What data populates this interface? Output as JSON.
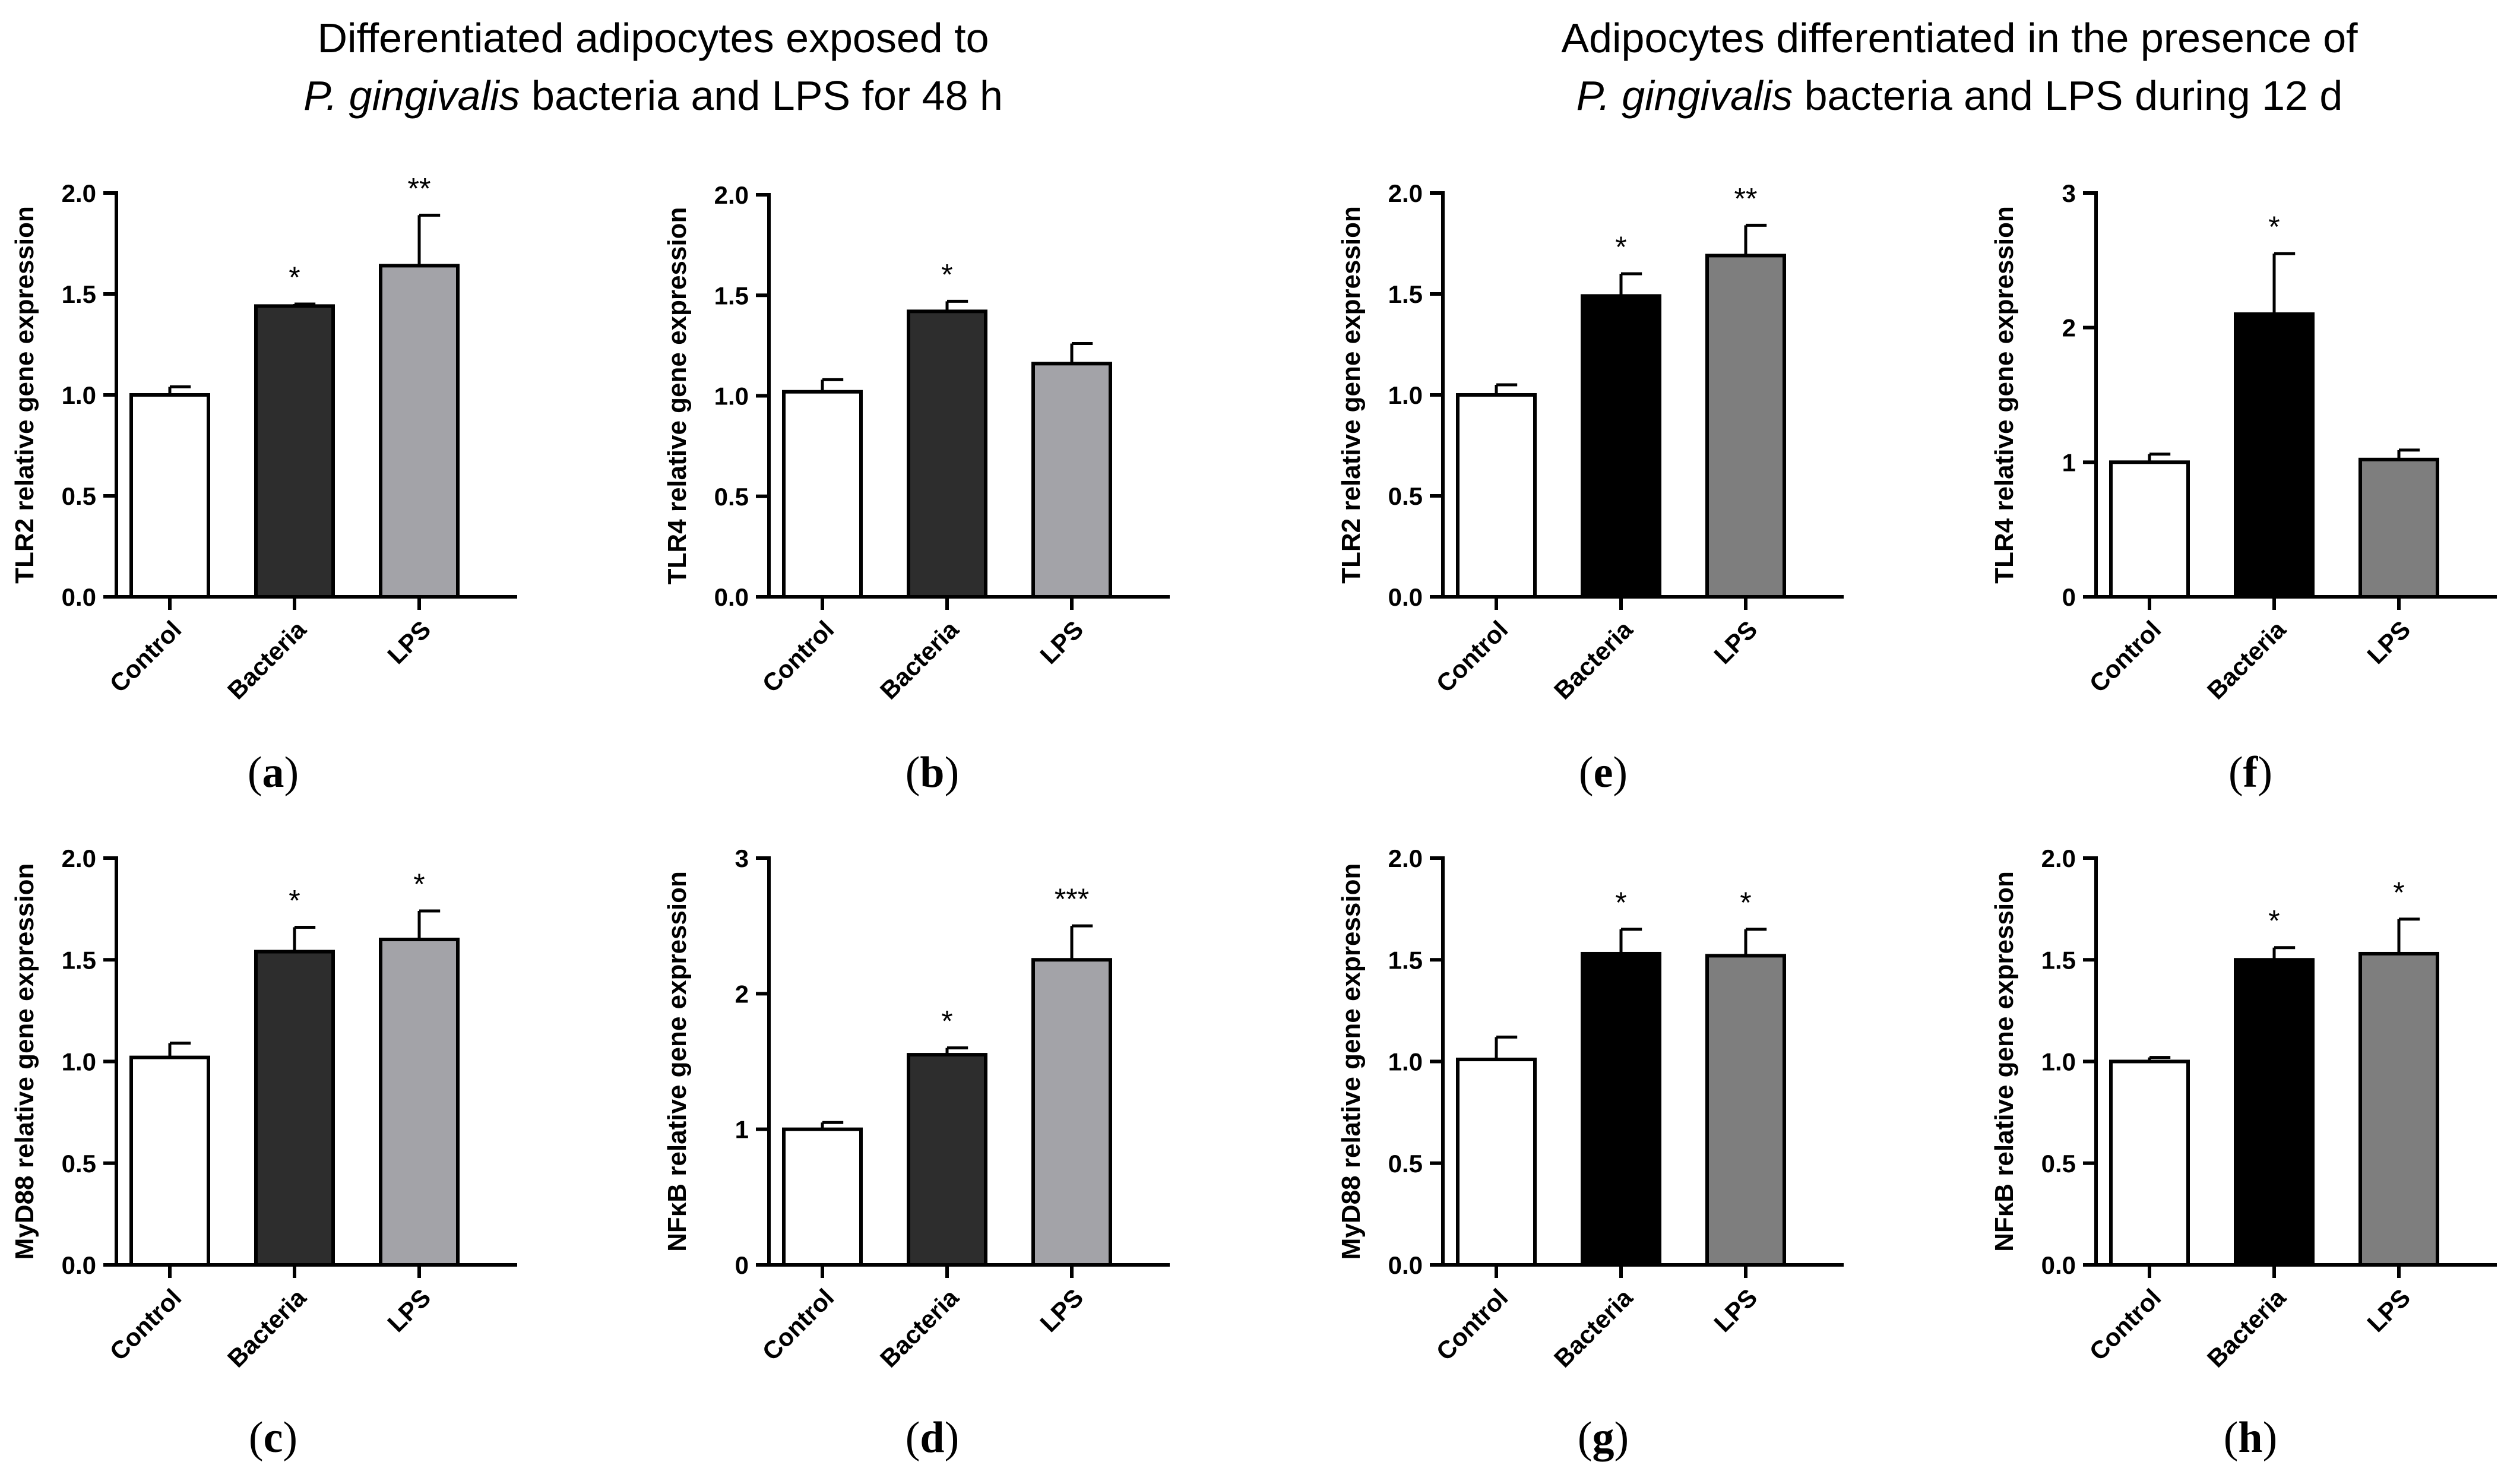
{
  "headers": [
    {
      "line1": "Differentiated adipocytes exposed to",
      "line2_italic": "P. gingivalis",
      "line2_rest": " bacteria and LPS for 48 h"
    },
    {
      "line1": "Adipocytes differentiated in the presence of",
      "line2_italic": "P. gingivalis",
      "line2_rest": " bacteria and LPS during 12 d"
    }
  ],
  "colors": {
    "control": "#ffffff",
    "bacteria_a": "#2d2d2d",
    "lps_a": "#a3a3a8",
    "bacteria_b": "#000000",
    "lps_b": "#7e7e7e",
    "axis": "#000000"
  },
  "chart_data": [
    {
      "type": "bar",
      "panel": "a",
      "ylabel": "TLR2 relative gene expression",
      "categories": [
        "Control",
        "Bacteria",
        "LPS"
      ],
      "values": [
        1.0,
        1.44,
        1.64
      ],
      "errors": [
        0.04,
        0.01,
        0.25
      ],
      "significance": [
        "",
        "*",
        "**"
      ],
      "ylim": [
        0,
        2.0
      ],
      "yticks": [
        "0.0",
        "0.5",
        "1.0",
        "1.5",
        "2.0"
      ],
      "scheme": "a"
    },
    {
      "type": "bar",
      "panel": "b",
      "ylabel": "TLR4 relative gene expression",
      "categories": [
        "Control",
        "Bacteria",
        "LPS"
      ],
      "values": [
        1.02,
        1.42,
        1.16
      ],
      "errors": [
        0.06,
        0.05,
        0.1
      ],
      "significance": [
        "",
        "*",
        ""
      ],
      "ylim": [
        0,
        2.0
      ],
      "yticks": [
        "0.0",
        "0.5",
        "1.0",
        "1.5",
        "2.0"
      ],
      "scheme": "a"
    },
    {
      "type": "bar",
      "panel": "c",
      "ylabel": "MyD88 relative gene expression",
      "categories": [
        "Control",
        "Bacteria",
        "LPS"
      ],
      "values": [
        1.02,
        1.54,
        1.6
      ],
      "errors": [
        0.07,
        0.12,
        0.14
      ],
      "significance": [
        "",
        "*",
        "*"
      ],
      "ylim": [
        0,
        2.0
      ],
      "yticks": [
        "0.0",
        "0.5",
        "1.0",
        "1.5",
        "2.0"
      ],
      "scheme": "a"
    },
    {
      "type": "bar",
      "panel": "d",
      "ylabel": "NFκB relative gene expression",
      "categories": [
        "Control",
        "Bacteria",
        "LPS"
      ],
      "values": [
        1.0,
        1.55,
        2.25
      ],
      "errors": [
        0.05,
        0.05,
        0.25
      ],
      "significance": [
        "",
        "*",
        "***"
      ],
      "ylim": [
        0,
        3
      ],
      "yticks": [
        "0",
        "1",
        "2",
        "3"
      ],
      "scheme": "a"
    },
    {
      "type": "bar",
      "panel": "e",
      "ylabel": "TLR2 relative gene expression",
      "categories": [
        "Control",
        "Bacteria",
        "LPS"
      ],
      "values": [
        1.0,
        1.49,
        1.69
      ],
      "errors": [
        0.05,
        0.11,
        0.15
      ],
      "significance": [
        "",
        "*",
        "**"
      ],
      "ylim": [
        0,
        2.0
      ],
      "yticks": [
        "0.0",
        "0.5",
        "1.0",
        "1.5",
        "2.0"
      ],
      "scheme": "b"
    },
    {
      "type": "bar",
      "panel": "f",
      "ylabel": "TLR4 relative gene expression",
      "categories": [
        "Control",
        "Bacteria",
        "LPS"
      ],
      "values": [
        1.0,
        2.1,
        1.02
      ],
      "errors": [
        0.06,
        0.45,
        0.07
      ],
      "significance": [
        "",
        "*",
        ""
      ],
      "ylim": [
        0,
        3
      ],
      "yticks": [
        "0",
        "1",
        "2",
        "3"
      ],
      "scheme": "b"
    },
    {
      "type": "bar",
      "panel": "g",
      "ylabel": "MyD88 relative gene expression",
      "categories": [
        "Control",
        "Bacteria",
        "LPS"
      ],
      "values": [
        1.01,
        1.53,
        1.52
      ],
      "errors": [
        0.11,
        0.12,
        0.13
      ],
      "significance": [
        "",
        "*",
        "*"
      ],
      "ylim": [
        0,
        2.0
      ],
      "yticks": [
        "0.0",
        "0.5",
        "1.0",
        "1.5",
        "2.0"
      ],
      "scheme": "b"
    },
    {
      "type": "bar",
      "panel": "h",
      "ylabel": "NFκB relative gene expression",
      "categories": [
        "Control",
        "Bacteria",
        "LPS"
      ],
      "values": [
        1.0,
        1.5,
        1.53
      ],
      "errors": [
        0.02,
        0.06,
        0.17
      ],
      "significance": [
        "",
        "*",
        "*"
      ],
      "ylim": [
        0,
        2.0
      ],
      "yticks": [
        "0.0",
        "0.5",
        "1.0",
        "1.5",
        "2.0"
      ],
      "scheme": "b"
    }
  ]
}
